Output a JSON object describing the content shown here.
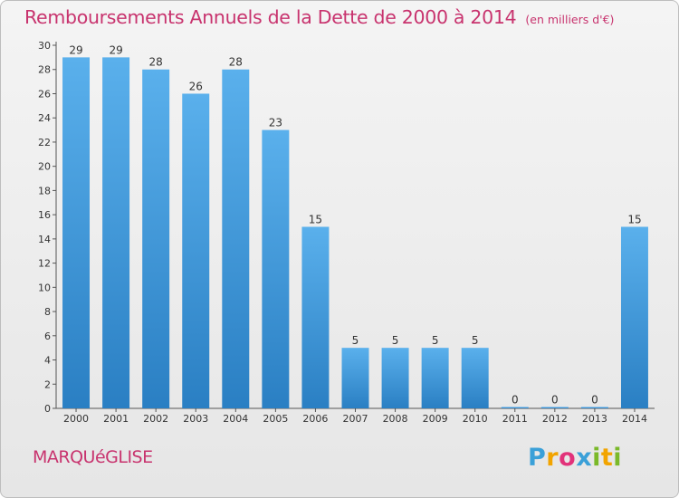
{
  "title": "Remboursements Annuels de la Dette de 2000 à 2014",
  "unit": "(en milliers d'€)",
  "commune": "MARQUéGLISE",
  "logo": {
    "letters": [
      "P",
      "r",
      "o",
      "x",
      "i",
      "t",
      "i"
    ],
    "colors": [
      "#3aa0d8",
      "#f2a400",
      "#e2327a",
      "#3aa0d8",
      "#7ab929",
      "#f2a400",
      "#7ab929"
    ]
  },
  "chart_data": {
    "type": "bar",
    "categories": [
      "2000",
      "2001",
      "2002",
      "2003",
      "2004",
      "2005",
      "2006",
      "2007",
      "2008",
      "2009",
      "2010",
      "2011",
      "2012",
      "2013",
      "2014"
    ],
    "values": [
      29,
      29,
      28,
      26,
      28,
      23,
      15,
      5,
      5,
      5,
      5,
      0,
      0,
      0,
      15
    ],
    "ylim": [
      0,
      30
    ],
    "yticks": [
      0,
      2,
      4,
      6,
      8,
      10,
      12,
      14,
      16,
      18,
      20,
      22,
      24,
      26,
      28,
      30
    ],
    "grid": false,
    "bar_color_top": "#5ab0ec",
    "bar_color_bottom": "#2a7fc3"
  }
}
